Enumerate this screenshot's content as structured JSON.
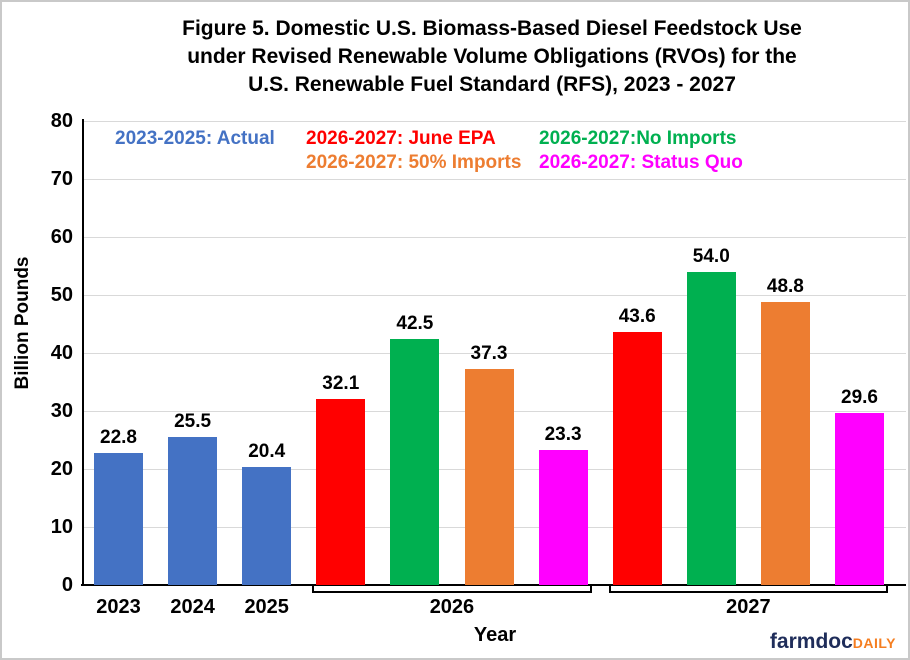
{
  "title": {
    "lines": [
      "Figure 5. Domestic U.S. Biomass-Based Diesel Feedstock Use",
      "under Revised Renewable Volume Obligations (RVOs) for the",
      "U.S. Renewable Fuel Standard (RFS), 2023 - 2027"
    ]
  },
  "legend": {
    "rows": [
      [
        {
          "label": "2023-2025: Actual",
          "color": "#4472C4",
          "col": 0
        },
        {
          "label": "2026-2027: June EPA",
          "color": "#FF0000",
          "col": 1
        },
        {
          "label": "2026-2027:No Imports",
          "color": "#00B050",
          "col": 2
        }
      ],
      [
        {
          "label": "2026-2027: 50% Imports",
          "color": "#ED7D31",
          "col": 1
        },
        {
          "label": "2026-2027: Status Quo",
          "color": "#FF00FF",
          "col": 2
        }
      ]
    ]
  },
  "chart_data": {
    "type": "bar",
    "title": "Figure 5. Domestic U.S. Biomass-Based Diesel Feedstock Use under Revised Renewable Volume Obligations (RVOs) for the U.S. Renewable Fuel Standard (RFS), 2023 - 2027",
    "xlabel": "Year",
    "ylabel": "Billion Pounds",
    "ylim": [
      0,
      80
    ],
    "ytick_step": 10,
    "grid": true,
    "legend_position": "top",
    "series_colors": {
      "Actual": "#4472C4",
      "June EPA": "#FF0000",
      "No Imports": "#00B050",
      "50% Imports": "#ED7D31",
      "Status Quo": "#FF00FF"
    },
    "bars": [
      {
        "group": "2023",
        "series": "Actual",
        "value": 22.8
      },
      {
        "group": "2024",
        "series": "Actual",
        "value": 25.5
      },
      {
        "group": "2025",
        "series": "Actual",
        "value": 20.4
      },
      {
        "group": "2026",
        "series": "June EPA",
        "value": 32.1
      },
      {
        "group": "2026",
        "series": "No Imports",
        "value": 42.5
      },
      {
        "group": "2026",
        "series": "50% Imports",
        "value": 37.3
      },
      {
        "group": "2026",
        "series": "Status Quo",
        "value": 23.3
      },
      {
        "group": "2027",
        "series": "June EPA",
        "value": 43.6
      },
      {
        "group": "2027",
        "series": "No Imports",
        "value": 54.0
      },
      {
        "group": "2027",
        "series": "50% Imports",
        "value": 48.8
      },
      {
        "group": "2027",
        "series": "Status Quo",
        "value": 29.6
      }
    ]
  },
  "footer": {
    "brand_primary": "farmdoc",
    "brand_secondary": "DAILY"
  }
}
